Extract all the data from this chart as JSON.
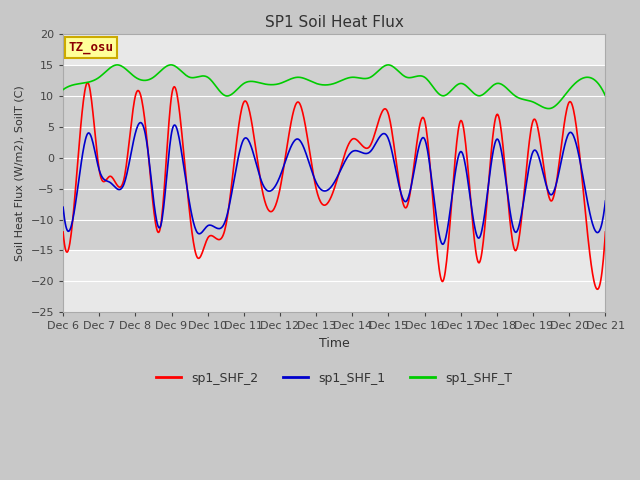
{
  "title": "SP1 Soil Heat Flux",
  "xlabel": "Time",
  "ylabel": "Soil Heat Flux (W/m2), SoilT (C)",
  "ylim": [
    -25,
    20
  ],
  "yticks": [
    -25,
    -20,
    -15,
    -10,
    -5,
    0,
    5,
    10,
    15,
    20
  ],
  "xtick_labels": [
    "Dec 6",
    "Dec 7",
    "Dec 8",
    "Dec 9",
    "Dec 10",
    "Dec 11",
    "Dec 12",
    "Dec 13",
    "Dec 14",
    "Dec 15",
    "Dec 16",
    "Dec 17",
    "Dec 18",
    "Dec 19",
    "Dec 20",
    "Dec 21"
  ],
  "line_colors": {
    "sp1_SHF_2": "#ff0000",
    "sp1_SHF_1": "#0000cd",
    "sp1_SHF_T": "#00cc00"
  },
  "annotation_text": "TZ_osu",
  "annotation_color": "#8b0000",
  "annotation_bg": "#ffff99",
  "annotation_border": "#ccaa00",
  "fig_bg": "#c8c8c8",
  "plot_bg": "#e8e8e8",
  "grid_color": "#ffffff",
  "stripe_color": "#d8d8d8",
  "legend_entries": [
    "sp1_SHF_2",
    "sp1_SHF_1",
    "sp1_SHF_T"
  ],
  "shf2_key_points": {
    "x": [
      0,
      0.3,
      0.7,
      1.0,
      1.3,
      1.7,
      2.0,
      2.3,
      2.7,
      3.0,
      3.3,
      3.7,
      4.0,
      4.5,
      5.0,
      5.5,
      6.0,
      6.5,
      7.0,
      7.5,
      8.0,
      8.5,
      9.0,
      9.5,
      10.0,
      10.5,
      11.0,
      11.5,
      12.0,
      12.5,
      13.0,
      13.5,
      14.0,
      14.5,
      15.0
    ],
    "y": [
      -12,
      -8,
      12,
      -2,
      -3,
      -3,
      10,
      4,
      -11,
      10,
      3,
      -16,
      -13,
      -11,
      9,
      -5,
      -5,
      9,
      -5,
      -5,
      3,
      2,
      7,
      -8,
      6,
      -20,
      6,
      -17,
      7,
      -15,
      6,
      -7,
      9,
      -12,
      -12
    ]
  },
  "shf1_key_points": {
    "x": [
      0,
      0.3,
      0.7,
      1.0,
      1.3,
      1.7,
      2.0,
      2.3,
      2.7,
      3.0,
      3.3,
      3.7,
      4.0,
      4.5,
      5.0,
      5.5,
      6.0,
      6.5,
      7.0,
      7.5,
      8.0,
      8.5,
      9.0,
      9.5,
      10.0,
      10.5,
      11.0,
      11.5,
      12.0,
      12.5,
      13.0,
      13.5,
      14.0,
      14.5,
      15.0
    ],
    "y": [
      -8,
      -9,
      4,
      -2,
      -4,
      -4,
      4,
      3,
      -11,
      4,
      0,
      -12,
      -11,
      -10,
      3,
      -4,
      -3,
      3,
      -4,
      -4,
      1,
      1,
      3,
      -7,
      3,
      -14,
      1,
      -13,
      3,
      -12,
      1,
      -6,
      4,
      -7,
      -7
    ]
  },
  "shfT_key_points": {
    "x": [
      0,
      0.5,
      1.0,
      1.5,
      2.0,
      2.5,
      3.0,
      3.5,
      4.0,
      4.5,
      5.0,
      5.5,
      6.0,
      6.5,
      7.0,
      7.5,
      8.0,
      8.5,
      9.0,
      9.5,
      10.0,
      10.5,
      11.0,
      11.5,
      12.0,
      12.5,
      13.0,
      13.5,
      14.0,
      14.5,
      15.0
    ],
    "y": [
      11,
      12,
      13,
      15,
      13,
      13,
      15,
      13,
      13,
      10,
      12,
      12,
      12,
      13,
      12,
      12,
      13,
      13,
      15,
      13,
      13,
      10,
      12,
      10,
      12,
      10,
      9,
      8,
      11,
      13,
      10
    ]
  }
}
